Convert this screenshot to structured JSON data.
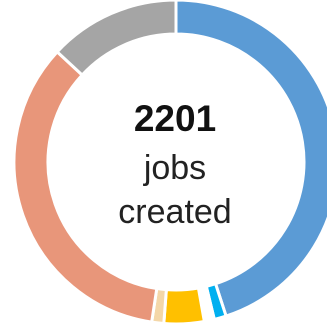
{
  "chart_data": {
    "type": "pie",
    "style": "donut",
    "title": "",
    "center": {
      "value": "2201",
      "line1": "jobs",
      "line2": "created"
    },
    "slices": [
      {
        "value": 45.0,
        "color": "#5b9bd5"
      },
      {
        "value": 1.2,
        "color": "#00b0f0"
      },
      {
        "value": 1.0,
        "color": "#ffffff"
      },
      {
        "value": 4.0,
        "color": "#ffc000"
      },
      {
        "value": 1.2,
        "color": "#f4d7a8"
      },
      {
        "value": 34.5,
        "color": "#e8967a"
      },
      {
        "value": 13.1,
        "color": "#a5a5a5"
      }
    ],
    "legend": "none",
    "grid": false
  }
}
